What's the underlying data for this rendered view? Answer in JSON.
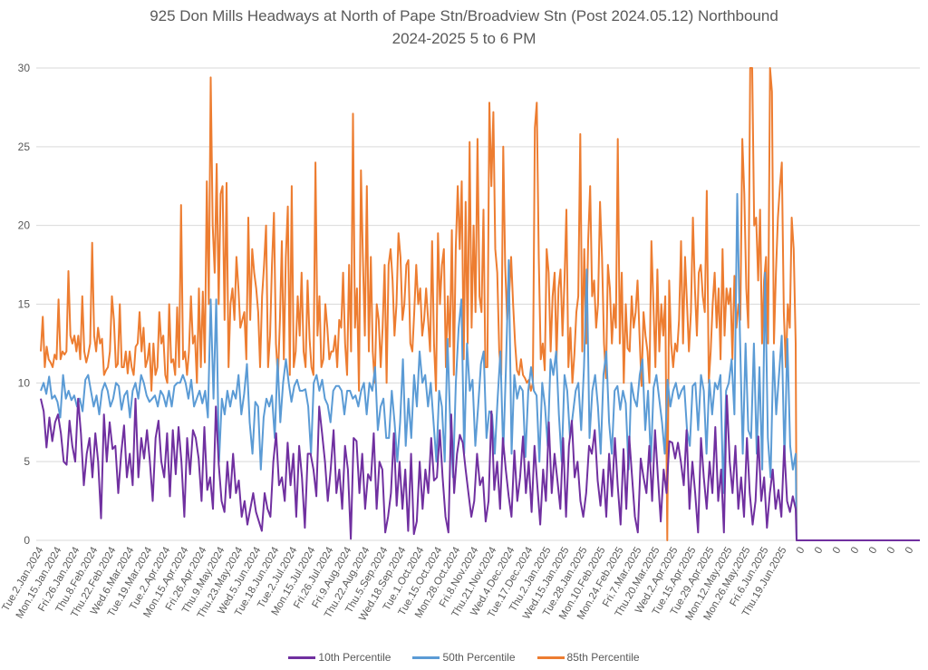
{
  "chart_data": {
    "type": "line",
    "title": "925 Don Mills Headways at North of Pape Stn/Broadview Stn (Post 2024.05.12) Northbound",
    "subtitle": "2024-2025 5 to 6 PM",
    "xlabel": "",
    "ylabel": "",
    "ylim": [
      0,
      30
    ],
    "yticks": [
      0,
      5,
      10,
      15,
      20,
      25,
      30
    ],
    "grid": true,
    "legend_position": "bottom",
    "x_tick_labels": [
      "Tue.2.Jan.2024",
      "Mon.15.Jan.2024",
      "Fri.26.Jan.2024",
      "Thu.8.Feb.2024",
      "Thu.22.Feb.2024",
      "Wed.6.Mar.2024",
      "Tue.19.Mar.2024",
      "Tue.2.Apr.2024",
      "Mon.15.Apr.2024",
      "Fri.26.Apr.2024",
      "Thu.9.May.2024",
      "Thu.23.May.2024",
      "Wed.5.Jun.2024",
      "Tue.18.Jun.2024",
      "Tue.2.Jul.2024",
      "Mon.15.Jul.2024",
      "Fri.26.Jul.2024",
      "Fri.9.Aug.2024",
      "Thu.22.Aug.2024",
      "Thu.5.Sep.2024",
      "Wed.18.Sep.2024",
      "Tue.1.Oct.2024",
      "Tue.15.Oct.2024",
      "Mon.28.Oct.2024",
      "Fri.8.Nov.2024",
      "Thu.21.Nov.2024",
      "Wed.4.Dec.2024",
      "Tue.17.Dec.2024",
      "Thu.2.Jan.2025",
      "Wed.15.Jan.2025",
      "Tue.28.Jan.2025",
      "Mon.10.Feb.2025",
      "Mon.24.Feb.2025",
      "Fri.7.Mar.2025",
      "Thu.20.Mar.2025",
      "Wed.2.Apr.2025",
      "Tue.15.Apr.2025",
      "Tue.29.Apr.2025",
      "Mon.12.May.2025",
      "Mon.26.May.2025",
      "Fri.6.Jun.2025",
      "Thu.19.Jun.2025",
      "0",
      "0",
      "0",
      "0",
      "0",
      "0",
      "0"
    ],
    "series": [
      {
        "name": "10th Percentile",
        "color": "#7030A0",
        "values": [
          9.0,
          8.2,
          5.9,
          7.8,
          6.3,
          7.5,
          8.0,
          6.8,
          5.0,
          4.8,
          7.6,
          6.0,
          5.0,
          9.0,
          6.8,
          3.5,
          5.5,
          6.5,
          4.0,
          6.8,
          5.0,
          1.4,
          8.0,
          5.0,
          7.5,
          5.8,
          6.0,
          3.0,
          5.5,
          7.3,
          4.0,
          5.5,
          3.5,
          9.0,
          4.0,
          6.5,
          5.2,
          7.0,
          5.0,
          2.5,
          6.5,
          7.6,
          5.0,
          4.0,
          6.8,
          2.8,
          7.0,
          4.2,
          7.2,
          5.0,
          1.5,
          6.5,
          4.2,
          7.0,
          6.5,
          5.2,
          2.5,
          7.2,
          3.2,
          4.0,
          2.0,
          8.5,
          4.8,
          2.5,
          1.8,
          5.0,
          2.7,
          5.5,
          3.0,
          3.8,
          1.5,
          2.5,
          1.0,
          2.0,
          3.0,
          1.8,
          1.2,
          0.6,
          3.0,
          2.0,
          1.5,
          5.0,
          6.8,
          3.5,
          4.0,
          2.5,
          6.2,
          3.5,
          5.5,
          1.5,
          6.0,
          4.0,
          0.8,
          5.5,
          5.5,
          4.5,
          2.8,
          8.5,
          6.8,
          5.0,
          2.5,
          4.5,
          7.0,
          3.0,
          4.5,
          2.0,
          6.0,
          4.5,
          0.1,
          6.5,
          6.3,
          3.0,
          5.5,
          2.0,
          4.2,
          3.8,
          6.8,
          2.0,
          5.0,
          4.5,
          0.5,
          1.5,
          3.0,
          6.8,
          2.2,
          5.0,
          2.0,
          4.5,
          0.6,
          5.5,
          0.4,
          1.2,
          5.0,
          2.0,
          4.5,
          3.0,
          6.5,
          3.8,
          4.0,
          7.0,
          4.0,
          1.5,
          0.5,
          8.0,
          3.0,
          5.5,
          6.7,
          6.2,
          4.5,
          3.0,
          1.5,
          2.5,
          5.5,
          3.5,
          4.0,
          1.2,
          2.5,
          8.2,
          3.2,
          5.0,
          2.0,
          6.5,
          4.5,
          2.8,
          1.5,
          5.7,
          2.5,
          4.0,
          6.6,
          3.0,
          5.0,
          1.8,
          6.0,
          3.5,
          1.0,
          4.5,
          2.5,
          7.5,
          3.0,
          5.5,
          3.8,
          2.0,
          6.5,
          1.5,
          6.0,
          7.6,
          4.0,
          5.0,
          2.5,
          1.5,
          3.0,
          6.0,
          5.5,
          7.0,
          3.8,
          2.2,
          4.5,
          1.5,
          5.5,
          2.8,
          6.5,
          3.5,
          1.0,
          5.8,
          2.0,
          6.6,
          4.0,
          1.5,
          0.5,
          5.2,
          4.0,
          3.0,
          6.0,
          2.5,
          7.0,
          4.0,
          1.2,
          4.5,
          3.0,
          6.3,
          6.2,
          5.2,
          6.2,
          5.0,
          3.5,
          7.0,
          2.0,
          5.0,
          3.0,
          0.5,
          6.5,
          4.0,
          2.0,
          5.0,
          3.0,
          7.2,
          2.5,
          4.5,
          0.5,
          9.2,
          5.0,
          3.0,
          6.0,
          2.0,
          4.0,
          1.5,
          6.5,
          3.0,
          1.0,
          2.5,
          6.6,
          2.5,
          4.0,
          0.8,
          3.0,
          4.5,
          2.0,
          3.2,
          1.5,
          6.0,
          2.5,
          1.8,
          2.8,
          2.0
        ]
      },
      {
        "name": "50th Percentile",
        "color": "#5B9BD5",
        "values": [
          9.5,
          10.0,
          9.3,
          10.4,
          9.0,
          9.2,
          8.8,
          7.8,
          10.5,
          9.0,
          9.5,
          8.9,
          9.2,
          8.5,
          9.0,
          8.2,
          10.2,
          10.5,
          9.5,
          8.5,
          9.2,
          8.0,
          9.5,
          10.0,
          9.5,
          8.5,
          9.0,
          10.0,
          9.8,
          8.3,
          9.2,
          9.5,
          7.8,
          9.5,
          10.0,
          9.0,
          10.5,
          10.0,
          9.2,
          8.8,
          9.0,
          9.2,
          8.5,
          9.5,
          9.2,
          8.5,
          9.5,
          8.5,
          9.8,
          10.0,
          10.0,
          10.5,
          10.0,
          9.0,
          10.2,
          8.5,
          9.0,
          9.5,
          8.7,
          9.5,
          7.8,
          15.3,
          9.0,
          15.3,
          5.0,
          9.0,
          8.0,
          9.5,
          8.5,
          9.5,
          9.0,
          10.5,
          8.0,
          9.3,
          11.2,
          7.5,
          5.5,
          8.8,
          8.5,
          4.5,
          7.8,
          9.0,
          8.5,
          9.2,
          6.5,
          11.5,
          7.5,
          10.0,
          11.5,
          10.0,
          8.8,
          9.8,
          10.2,
          9.5,
          9.5,
          9.6,
          8.5,
          5.5,
          10.0,
          10.5,
          9.5,
          10.2,
          9.0,
          8.6,
          7.5,
          9.5,
          9.8,
          9.8,
          9.5,
          8.0,
          9.5,
          9.5,
          9.0,
          9.2,
          8.5,
          9.5,
          10.0,
          8.0,
          10.0,
          9.5,
          11.0,
          7.0,
          8.5,
          9.0,
          6.5,
          6.5,
          9.5,
          7.5,
          5.0,
          7.5,
          11.5,
          6.0,
          9.0,
          6.5,
          10.5,
          8.5,
          12.0,
          10.0,
          10.5,
          8.5,
          10.0,
          7.5,
          5.0,
          9.5,
          8.5,
          5.0,
          12.8,
          7.5,
          4.0,
          10.0,
          13.5,
          15.3,
          5.5,
          12.5,
          9.5,
          10.2,
          6.0,
          8.5,
          11.2,
          12.0,
          6.5,
          8.2,
          8.0,
          5.5,
          9.0,
          12.0,
          5.5,
          11.0,
          17.8,
          5.5,
          10.5,
          9.0,
          9.8,
          9.5,
          5.3,
          9.5,
          11.0,
          9.5,
          9.2,
          5.0,
          10.0,
          8.5,
          6.0,
          11.5,
          10.5,
          12.0,
          8.0,
          5.0,
          10.5,
          9.5,
          6.5,
          8.0,
          9.5,
          10.0,
          7.0,
          11.0,
          17.2,
          6.5,
          9.5,
          10.5,
          8.5,
          5.5,
          10.5,
          12.0,
          7.5,
          5.5,
          9.5,
          9.8,
          8.3,
          9.5,
          8.7,
          4.5,
          10.0,
          9.0,
          8.5,
          10.5,
          11.5,
          7.0,
          9.5,
          5.0,
          9.7,
          10.5,
          9.0,
          7.5,
          5.5,
          10.2,
          8.5,
          9.5,
          10.0,
          9.0,
          9.5,
          9.8,
          7.0,
          6.0,
          9.8,
          10.0,
          7.0,
          10.5,
          9.5,
          5.5,
          10.2,
          8.0,
          10.0,
          9.6,
          10.5,
          3.0,
          9.5,
          10.0,
          11.5,
          8.0,
          22.0,
          13.0,
          5.5,
          12.5,
          7.0,
          6.5,
          12.5,
          5.5,
          11.0,
          4.5,
          17.0,
          6.5,
          4.0,
          12.0,
          8.0,
          10.5,
          13.0,
          5.0,
          12.8,
          6.0,
          4.5,
          5.5
        ]
      },
      {
        "name": "85th Percentile",
        "color": "#ED7D31",
        "values": [
          12.0,
          14.2,
          11.0,
          12.3,
          11.5,
          11.3,
          11.0,
          11.8,
          11.5,
          15.3,
          11.5,
          12.0,
          11.8,
          12.0,
          17.1,
          13.0,
          12.5,
          13.0,
          12.0,
          13.0,
          11.5,
          15.5,
          12.0,
          11.3,
          11.8,
          12.5,
          18.9,
          13.0,
          12.0,
          13.5,
          12.5,
          12.8,
          10.5,
          10.8,
          11.0,
          12.0,
          15.5,
          14.0,
          11.0,
          11.2,
          15.0,
          11.0,
          11.0,
          12.0,
          10.6,
          12.0,
          11.0,
          10.5,
          12.3,
          12.5,
          14.5,
          12.0,
          13.5,
          11.0,
          11.5,
          12.5,
          9.5,
          12.5,
          10.5,
          11.0,
          14.5,
          12.5,
          13.0,
          10.5,
          10.0,
          15.0,
          11.3,
          11.5,
          10.5,
          14.8,
          11.0,
          21.3,
          11.5,
          12.0,
          10.5,
          12.0,
          15.5,
          12.5,
          13.0,
          10.0,
          16.0,
          11.0,
          15.8,
          11.3,
          22.8,
          15.0,
          29.4,
          20.0,
          17.0,
          23.9,
          15.0,
          22.0,
          22.5,
          14.0,
          22.7,
          11.0,
          15.0,
          16.0,
          14.0,
          18.0,
          16.0,
          13.5,
          14.0,
          14.5,
          11.5,
          20.5,
          14.0,
          18.5,
          17.0,
          16.0,
          14.5,
          11.0,
          15.5,
          17.5,
          20.0,
          11.0,
          13.0,
          17.5,
          20.8,
          12.5,
          10.3,
          14.0,
          19.0,
          11.5,
          18.0,
          21.2,
          10.5,
          22.5,
          11.0,
          12.0,
          15.5,
          13.0,
          17.0,
          12.0,
          11.0,
          16.5,
          12.8,
          11.0,
          10.5,
          24.0,
          13.0,
          15.5,
          11.0,
          11.5,
          15.0,
          13.5,
          11.5,
          12.0,
          12.0,
          13.0,
          11.0,
          14.0,
          13.5,
          17.0,
          12.5,
          10.5,
          17.5,
          12.0,
          27.1,
          13.5,
          16.0,
          9.5,
          23.5,
          18.0,
          13.0,
          22.5,
          12.0,
          18.0,
          12.0,
          10.0,
          15.0,
          14.0,
          11.0,
          13.5,
          17.5,
          10.0,
          17.5,
          18.5,
          16.5,
          13.0,
          15.0,
          19.5,
          18.0,
          14.0,
          15.0,
          17.5,
          17.8,
          12.5,
          12.0,
          14.5,
          17.5,
          15.0,
          16.0,
          13.0,
          14.0,
          16.0,
          14.0,
          12.0,
          19.0,
          12.5,
          9.5,
          19.5,
          15.0,
          17.5,
          18.5,
          11.0,
          15.5,
          12.3,
          19.7,
          10.5,
          18.5,
          22.5,
          18.5,
          22.8,
          11.5,
          21.5,
          12.5,
          25.3,
          13.5,
          20.0,
          14.5,
          25.5,
          15.5,
          14.5,
          21.0,
          11.0,
          11.0,
          27.8,
          22.5,
          27.2,
          18.5,
          17.0,
          12.0,
          10.5,
          25.0,
          17.5,
          14.0,
          15.5,
          18.0,
          15.0,
          12.5,
          10.8,
          10.5,
          11.5,
          10.5,
          10.3,
          10.0,
          10.2,
          9.5,
          10.0,
          26.2,
          27.8,
          18.0,
          11.5,
          12.5,
          10.8,
          18.5,
          17.0,
          12.0,
          15.5,
          17.0,
          11.5,
          16.0,
          17.2,
          13.0,
          16.5,
          21.0,
          11.0,
          13.5,
          10.0,
          11.8,
          14.5,
          15.5,
          25.8,
          12.0,
          18.5,
          12.5,
          19.0,
          22.5,
          15.5,
          16.5,
          13.5,
          15.0,
          21.5,
          18.0,
          12.5,
          10.3,
          17.5,
          16.0,
          12.5,
          15.0,
          13.5,
          25.5,
          12.5,
          17.0,
          10.0,
          15.0,
          12.2,
          12.0,
          15.5,
          13.5,
          14.5,
          16.5,
          13.0,
          9.8,
          14.5,
          13.0,
          12.0,
          10.0,
          19.0,
          15.0,
          11.0,
          17.2,
          12.0,
          15.0,
          13.0,
          15.5,
          0.0,
          16.5,
          12.5,
          11.0,
          12.5,
          12.0,
          14.0,
          19.0,
          12.5,
          18.0,
          15.0,
          12.0,
          14.5,
          20.5,
          16.0,
          13.0,
          17.0,
          17.5,
          15.5,
          14.5,
          22.2,
          10.0,
          12.0,
          15.0,
          17.0,
          13.5,
          16.0,
          11.5,
          18.5,
          13.0,
          16.0,
          15.0,
          16.0,
          11.5,
          16.8,
          13.5,
          15.0,
          14.0,
          25.5,
          22.0,
          16.0,
          13.5,
          30.0,
          30.0,
          20.0,
          20.5,
          16.5,
          21.0,
          12.5,
          16.5,
          18.0,
          12.5,
          30.0,
          28.5,
          12.5,
          17.0,
          20.5,
          22.5,
          24.0,
          14.5,
          11.0,
          15.0,
          13.5,
          20.5,
          18.5,
          12.5
        ]
      }
    ]
  }
}
